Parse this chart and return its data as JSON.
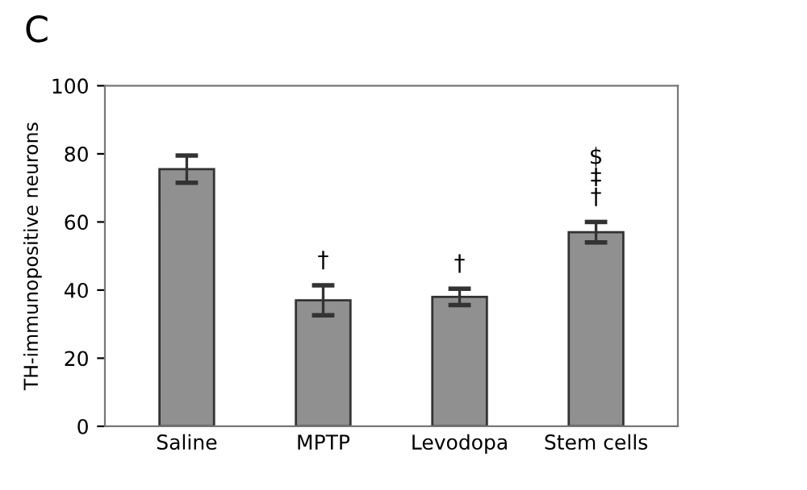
{
  "chart_data": {
    "type": "bar",
    "ylabel": "TH-immunopositive neurons",
    "categories": [
      "Saline",
      "MPTP",
      "Levodopa",
      "Stem cells"
    ],
    "values": [
      75.5,
      37,
      38,
      57
    ],
    "errors": [
      4,
      4.4,
      2.4,
      3
    ],
    "color": "#909090",
    "ylim": [
      0,
      100
    ],
    "yticks": [
      0,
      20,
      40,
      60,
      80,
      100
    ],
    "grid": false,
    "annotations": [
      "C",
      {
        "text": "†",
        "x": "MPTP",
        "y": 41.4
      },
      {
        "text": "†",
        "x": "Levodopa",
        "y": 40.4
      },
      {
        "text": "$\n‡\n†",
        "x": "Stem cells",
        "y": 60
      }
    ]
  }
}
